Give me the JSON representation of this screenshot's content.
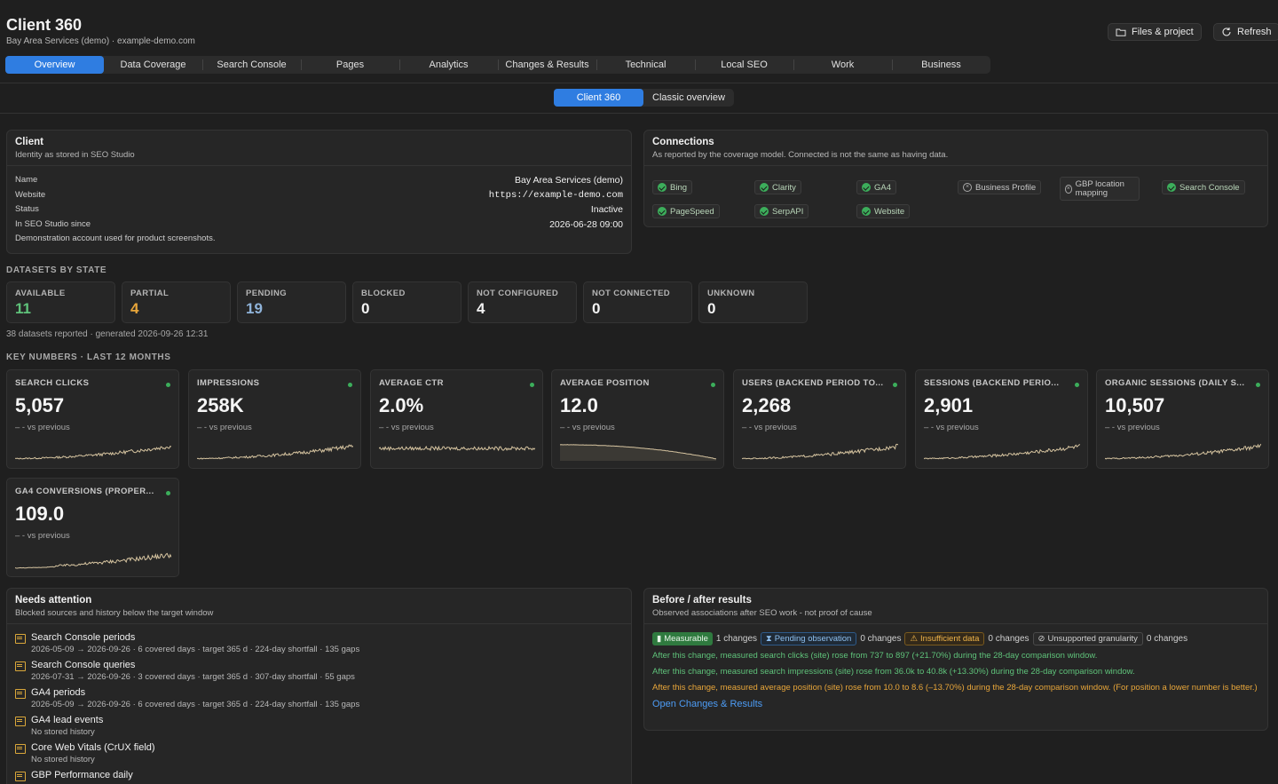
{
  "header": {
    "title": "Client 360",
    "subtitle": "Bay Area Services (demo) · example-demo.com",
    "files_label": "Files & project",
    "refresh_label": "Refresh"
  },
  "tabs": [
    "Overview",
    "Data Coverage",
    "Search Console",
    "Pages",
    "Analytics",
    "Changes & Results",
    "Technical",
    "Local SEO",
    "Work",
    "Business"
  ],
  "subtabs": [
    "Client 360",
    "Classic overview"
  ],
  "client": {
    "title": "Client",
    "subtitle": "Identity as stored in SEO Studio",
    "name_label": "Name",
    "name": "Bay Area Services (demo)",
    "website_label": "Website",
    "website": "https://example-demo.com",
    "status_label": "Status",
    "status": "Inactive",
    "since_label": "In SEO Studio since",
    "since": "2026-06-28 09:00",
    "description": "Demonstration account used for product screenshots."
  },
  "connections": {
    "title": "Connections",
    "subtitle": "As reported by the coverage model. Connected is not the same as having data.",
    "items": [
      {
        "label": "Bing",
        "connected": true
      },
      {
        "label": "Clarity",
        "connected": true
      },
      {
        "label": "GA4",
        "connected": true
      },
      {
        "label": "Business Profile",
        "connected": false
      },
      {
        "label": "GBP location mapping",
        "connected": false
      },
      {
        "label": "Search Console",
        "connected": true
      },
      {
        "label": "PageSpeed",
        "connected": true
      },
      {
        "label": "SerpAPI",
        "connected": true
      },
      {
        "label": "Website",
        "connected": true
      }
    ]
  },
  "datasets": {
    "section_label": "DATASETS BY STATE",
    "states": [
      {
        "label": "AVAILABLE",
        "value": "11",
        "color": "#5fc27a"
      },
      {
        "label": "PARTIAL",
        "value": "4",
        "color": "#e8a63a"
      },
      {
        "label": "PENDING",
        "value": "19",
        "color": "#8fb3d9"
      },
      {
        "label": "BLOCKED",
        "value": "0",
        "color": "#f2f2f2"
      },
      {
        "label": "NOT CONFIGURED",
        "value": "4",
        "color": "#f2f2f2"
      },
      {
        "label": "NOT CONNECTED",
        "value": "0",
        "color": "#f2f2f2"
      },
      {
        "label": "UNKNOWN",
        "value": "0",
        "color": "#f2f2f2"
      }
    ],
    "meta": "38 datasets reported · generated 2026-09-26 12:31"
  },
  "key_numbers": {
    "section_label": "KEY NUMBERS · LAST 12 MONTHS",
    "compare_text": "– -  vs previous",
    "metrics": [
      {
        "label": "SEARCH CLICKS",
        "value": "5,057",
        "trend": "rising"
      },
      {
        "label": "IMPRESSIONS",
        "value": "258K",
        "trend": "rising"
      },
      {
        "label": "AVERAGE CTR",
        "value": "2.0%",
        "trend": "flat"
      },
      {
        "label": "AVERAGE POSITION",
        "value": "12.0",
        "trend": "arc"
      },
      {
        "label": "USERS (BACKEND PERIOD TO...",
        "value": "2,268",
        "trend": "rising"
      },
      {
        "label": "SESSIONS (BACKEND PERIO...",
        "value": "2,901",
        "trend": "rising"
      },
      {
        "label": "ORGANIC SESSIONS (DAILY S...",
        "value": "10,507",
        "trend": "rising"
      },
      {
        "label": "GA4 CONVERSIONS (PROPER...",
        "value": "109.0",
        "trend": "sparse"
      }
    ]
  },
  "attention": {
    "title": "Needs attention",
    "subtitle": "Blocked sources and history below the target window",
    "items": [
      {
        "name": "Search Console periods",
        "detail": "2026-05-09 → 2026-09-26 · 6 covered days · target 365 d · 224-day shortfall · 135 gaps"
      },
      {
        "name": "Search Console queries",
        "detail": "2026-07-31 → 2026-09-26 · 3 covered days · target 365 d · 307-day shortfall · 55 gaps"
      },
      {
        "name": "GA4 periods",
        "detail": "2026-05-09 → 2026-09-26 · 6 covered days · target 365 d · 224-day shortfall · 135 gaps"
      },
      {
        "name": "GA4 lead events",
        "detail": "No stored history"
      },
      {
        "name": "Core Web Vitals (CrUX field)",
        "detail": "No stored history"
      },
      {
        "name": "GBP Performance daily",
        "detail": ""
      }
    ]
  },
  "results": {
    "title": "Before / after results",
    "subtitle": "Observed associations after SEO work - not proof of cause",
    "badges": [
      {
        "label": "Measurable",
        "count": "1 changes"
      },
      {
        "label": "Pending observation",
        "count": "0 changes"
      },
      {
        "label": "Insufficient data",
        "count": "0 changes"
      },
      {
        "label": "Unsupported granularity",
        "count": "0 changes"
      }
    ],
    "lines": [
      {
        "text": "After this change, measured search clicks (site) rose from 737 to 897 (+21.70%) during the 28-day comparison window.",
        "tone": "green"
      },
      {
        "text": "After this change, measured search impressions (site) rose from 36.0k to 40.8k (+13.30%) during the 28-day comparison window.",
        "tone": "green"
      },
      {
        "text": "After this change, measured average position (site) rose from 10.0 to 8.6 (–13.70%) during the 28-day comparison window. (For position a lower number is better.)",
        "tone": "amber"
      }
    ],
    "link": "Open Changes & Results"
  }
}
